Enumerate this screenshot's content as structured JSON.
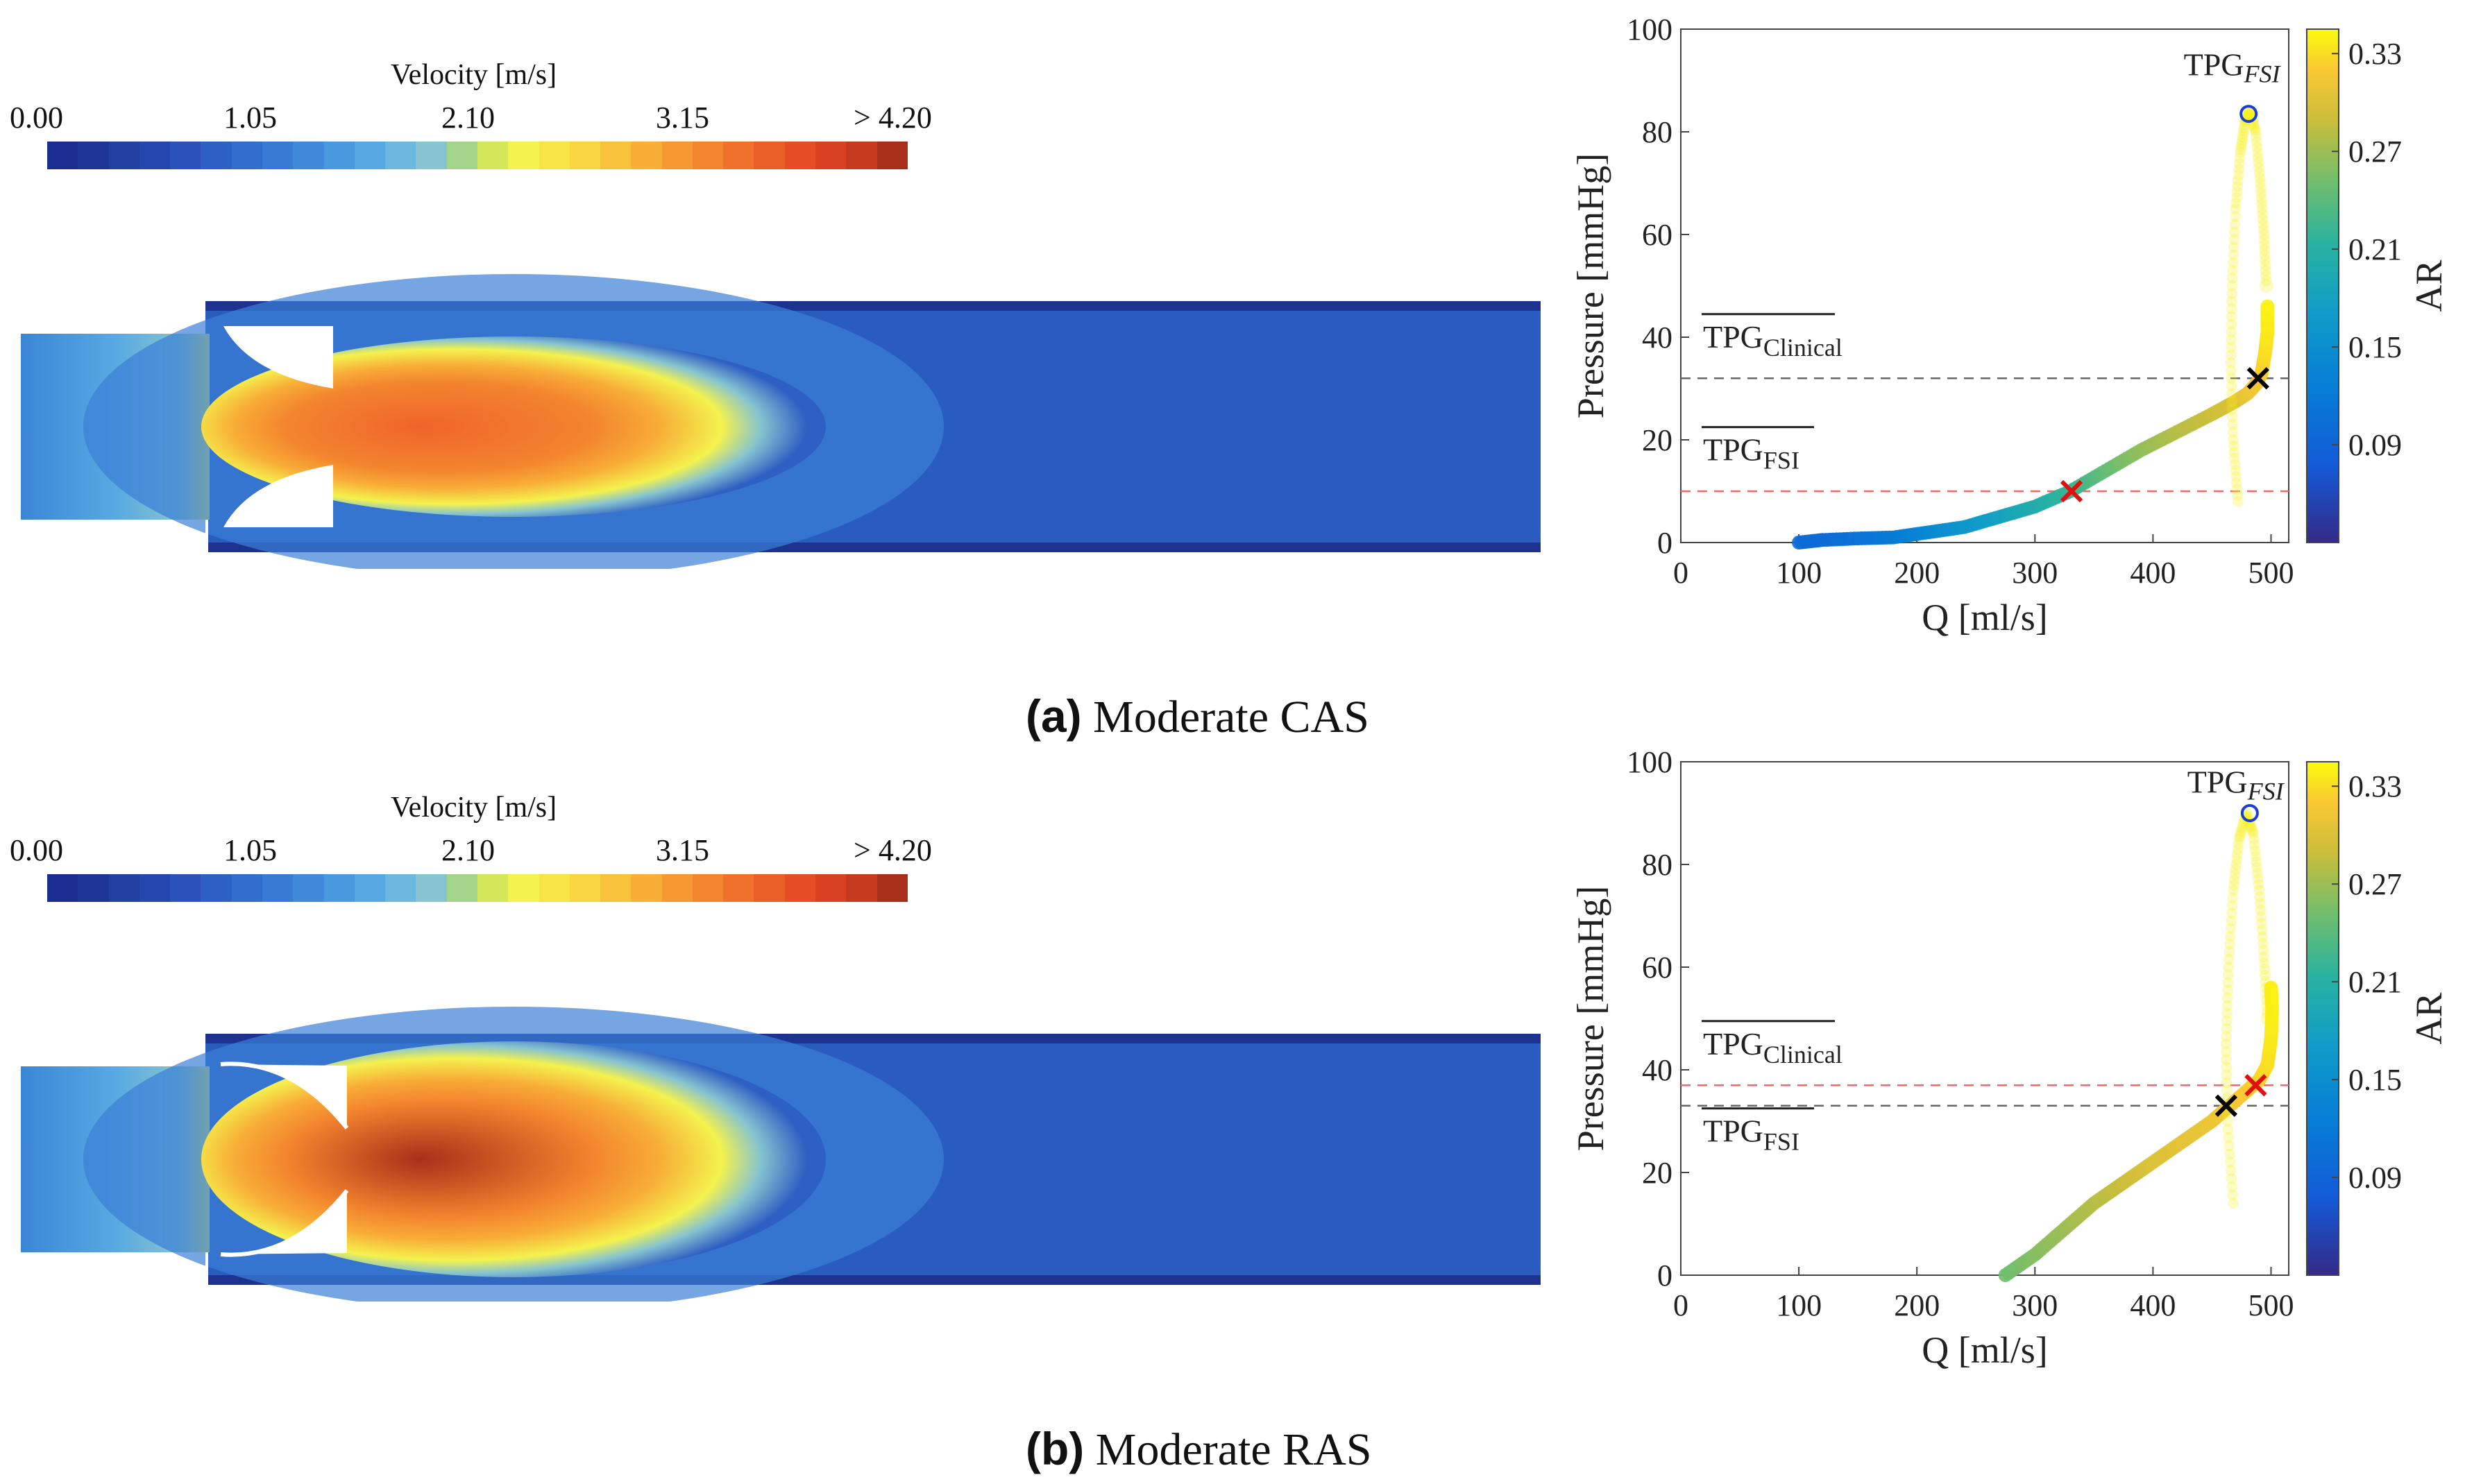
{
  "colorbar": {
    "title": "Velocity [m/s]",
    "ticks": [
      "0.00",
      "1.05",
      "2.10",
      "3.15",
      "> 4.20"
    ],
    "colors": [
      "#1b2d8e",
      "#1e3597",
      "#223fa2",
      "#2546ad",
      "#2a52b8",
      "#2e5fc3",
      "#336dcc",
      "#387bd4",
      "#4089da",
      "#4a99df",
      "#58a9e2",
      "#6bb7de",
      "#86c4cf",
      "#a4d489",
      "#d4e75a",
      "#f4f24e",
      "#f7e547",
      "#f8d541",
      "#f9c23c",
      "#f8ad37",
      "#f69932",
      "#f3852e",
      "#ef712b",
      "#ea5e28",
      "#e44d25",
      "#d84222",
      "#c5391e",
      "#a8301a"
    ]
  },
  "panels": [
    {
      "caption_label": "(a)",
      "caption_text": "Moderate CAS",
      "chart_data": {
        "type": "scatter",
        "xlabel": "Q [ml/s]",
        "ylabel": "Pressure [mmHg]",
        "xlim": [
          0,
          515
        ],
        "ylim": [
          0,
          100
        ],
        "xticks": [
          0,
          100,
          200,
          300,
          400,
          500
        ],
        "yticks": [
          0,
          20,
          40,
          60,
          80,
          100
        ],
        "colorbar_label": "AR",
        "colorbar_range": [
          0.03,
          0.345
        ],
        "colorbar_ticks": [
          "0.09",
          "0.15",
          "0.21",
          "0.27",
          "0.33"
        ],
        "colorbar_tick_values": [
          0.09,
          0.15,
          0.21,
          0.27,
          0.33
        ],
        "series": [
          {
            "values": [
              [
                100,
                0,
                0.1
              ],
              [
                120,
                0.5,
                0.1
              ],
              [
                150,
                0.8,
                0.11
              ],
              [
                180,
                1,
                0.12
              ],
              [
                210,
                2,
                0.14
              ],
              [
                240,
                3,
                0.16
              ],
              [
                270,
                5,
                0.18
              ],
              [
                300,
                7,
                0.2
              ],
              [
                330,
                10,
                0.22
              ],
              [
                360,
                14,
                0.245
              ],
              [
                390,
                18,
                0.265
              ],
              [
                420,
                21.5,
                0.28
              ],
              [
                450,
                25,
                0.29
              ],
              [
                470,
                27.5,
                0.3
              ],
              [
                480,
                29,
                0.31
              ],
              [
                488,
                31,
                0.315
              ],
              [
                492,
                33,
                0.32
              ],
              [
                495,
                37,
                0.33
              ],
              [
                497,
                41,
                0.335
              ],
              [
                497,
                46,
                0.34
              ]
            ]
          },
          {
            "values": [
              [
                472,
                8,
                0.34
              ],
              [
                468,
                20,
                0.34
              ],
              [
                466,
                35,
                0.34
              ],
              [
                467,
                50,
                0.34
              ],
              [
                470,
                65,
                0.34
              ],
              [
                474,
                76,
                0.34
              ],
              [
                478,
                82,
                0.34
              ],
              [
                482,
                84,
                0.34
              ],
              [
                487,
                80,
                0.34
              ],
              [
                491,
                70,
                0.34
              ],
              [
                494,
                60,
                0.34
              ],
              [
                496,
                50,
                0.34
              ]
            ]
          }
        ],
        "lines": [
          {
            "name": "TPG_Clinical",
            "y": 32,
            "color": "#666666"
          },
          {
            "name": "TPG_FSI",
            "y": 10,
            "color": "#ff6464"
          }
        ],
        "line_labels": [
          {
            "main": "TPG",
            "sub": "Clinical",
            "y": 38
          },
          {
            "main": "TPG",
            "sub": "FSI",
            "y": 16
          }
        ],
        "markers": [
          {
            "type": "circle",
            "x": 481,
            "y": 83.5,
            "color": "#1a3fd8"
          },
          {
            "type": "x",
            "x": 489,
            "y": 32,
            "color": "#000000"
          },
          {
            "type": "x",
            "x": 331,
            "y": 10,
            "color": "#e01010"
          }
        ],
        "annotation": {
          "main": "TPG",
          "sub": "FSI",
          "x": 426,
          "y": 91
        }
      },
      "field": {
        "inlet_h": 268,
        "jet_len": 1.0,
        "core": "#f0642a",
        "throat": "narrow"
      }
    },
    {
      "caption_label": "(b)",
      "caption_text": "Moderate RAS",
      "chart_data": {
        "type": "scatter",
        "xlabel": "Q [ml/s]",
        "ylabel": "Pressure [mmHg]",
        "xlim": [
          0,
          515
        ],
        "ylim": [
          0,
          100
        ],
        "xticks": [
          0,
          100,
          200,
          300,
          400,
          500
        ],
        "yticks": [
          0,
          20,
          40,
          60,
          80,
          100
        ],
        "colorbar_label": "AR",
        "colorbar_range": [
          0.03,
          0.345
        ],
        "colorbar_ticks": [
          "0.09",
          "0.15",
          "0.21",
          "0.27",
          "0.33"
        ],
        "colorbar_tick_values": [
          0.09,
          0.15,
          0.21,
          0.27,
          0.33
        ],
        "series": [
          {
            "values": [
              [
                275,
                0,
                0.25
              ],
              [
                300,
                4,
                0.26
              ],
              [
                325,
                9,
                0.27
              ],
              [
                350,
                14,
                0.28
              ],
              [
                375,
                18,
                0.29
              ],
              [
                400,
                22,
                0.3
              ],
              [
                425,
                26,
                0.305
              ],
              [
                450,
                30,
                0.31
              ],
              [
                465,
                33,
                0.315
              ],
              [
                480,
                36,
                0.32
              ],
              [
                490,
                38,
                0.325
              ],
              [
                497,
                41,
                0.33
              ],
              [
                500,
                46,
                0.335
              ],
              [
                501,
                52,
                0.34
              ],
              [
                500,
                56,
                0.34
              ]
            ]
          },
          {
            "values": [
              [
                468,
                14,
                0.34
              ],
              [
                463,
                30,
                0.34
              ],
              [
                462,
                45,
                0.34
              ],
              [
                464,
                60,
                0.34
              ],
              [
                468,
                75,
                0.34
              ],
              [
                473,
                85,
                0.34
              ],
              [
                479,
                90,
                0.34
              ],
              [
                485,
                86,
                0.34
              ],
              [
                490,
                75,
                0.34
              ],
              [
                494,
                62,
                0.34
              ],
              [
                497,
                50,
                0.34
              ]
            ]
          }
        ],
        "lines": [
          {
            "name": "TPG_FSI",
            "y": 37,
            "color": "#ff6464"
          },
          {
            "name": "TPG_Clinical",
            "y": 33,
            "color": "#666666"
          }
        ],
        "line_labels": [
          {
            "main": "TPG",
            "sub": "Clinical",
            "y": 43
          },
          {
            "main": "TPG",
            "sub": "FSI",
            "y": 26
          }
        ],
        "markers": [
          {
            "type": "circle",
            "x": 482,
            "y": 90,
            "color": "#1a3fd8"
          },
          {
            "type": "x",
            "x": 462,
            "y": 33,
            "color": "#000000"
          },
          {
            "type": "x",
            "x": 487,
            "y": 37,
            "color": "#e01010"
          }
        ],
        "annotation": {
          "main": "TPG",
          "sub": "FSI",
          "x": 429,
          "y": 94
        }
      },
      "field": {
        "inlet_h": 268,
        "jet_len": 1.0,
        "core": "#a8301a",
        "throat": "wide"
      }
    }
  ]
}
